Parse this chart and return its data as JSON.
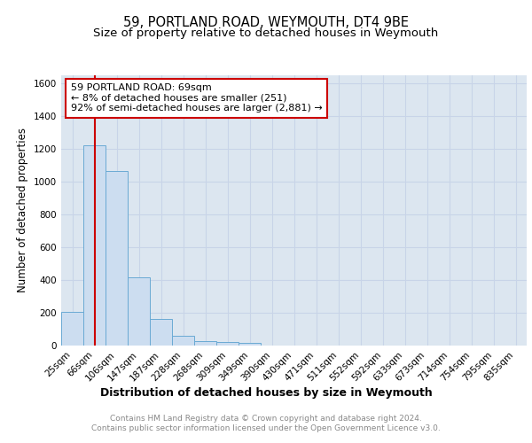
{
  "title1": "59, PORTLAND ROAD, WEYMOUTH, DT4 9BE",
  "title2": "Size of property relative to detached houses in Weymouth",
  "xlabel": "Distribution of detached houses by size in Weymouth",
  "ylabel": "Number of detached properties",
  "bin_labels": [
    "25sqm",
    "66sqm",
    "106sqm",
    "147sqm",
    "187sqm",
    "228sqm",
    "268sqm",
    "309sqm",
    "349sqm",
    "390sqm",
    "430sqm",
    "471sqm",
    "511sqm",
    "552sqm",
    "592sqm",
    "633sqm",
    "673sqm",
    "714sqm",
    "754sqm",
    "795sqm",
    "835sqm"
  ],
  "bar_values": [
    205,
    1225,
    1065,
    415,
    160,
    57,
    28,
    20,
    15,
    0,
    0,
    0,
    0,
    0,
    0,
    0,
    0,
    0,
    0,
    0,
    0
  ],
  "bar_color": "#ccddf0",
  "bar_edge_color": "#6aaad4",
  "annotation_line1": "59 PORTLAND ROAD: 69sqm",
  "annotation_line2": "← 8% of detached houses are smaller (251)",
  "annotation_line3": "92% of semi-detached houses are larger (2,881) →",
  "annotation_box_color": "#ffffff",
  "annotation_box_edge": "#cc0000",
  "redline_color": "#cc0000",
  "redline_x": 1.0,
  "ylim": [
    0,
    1650
  ],
  "yticks": [
    0,
    200,
    400,
    600,
    800,
    1000,
    1200,
    1400,
    1600
  ],
  "grid_color": "#c8d4e8",
  "background_color": "#dce6f0",
  "footer_text": "Contains HM Land Registry data © Crown copyright and database right 2024.\nContains public sector information licensed under the Open Government Licence v3.0.",
  "title1_fontsize": 10.5,
  "title2_fontsize": 9.5,
  "xlabel_fontsize": 9,
  "ylabel_fontsize": 8.5,
  "tick_fontsize": 7.5,
  "annotation_fontsize": 8,
  "footer_fontsize": 6.5
}
